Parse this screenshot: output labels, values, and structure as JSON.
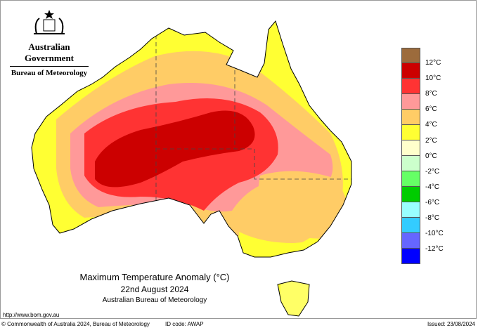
{
  "header": {
    "agency": "Australian Government",
    "bureau": "Bureau of Meteorology",
    "logo": "commonwealth-coat-of-arms"
  },
  "map": {
    "title": "Maximum Temperature Anomaly (°C)",
    "date": "22nd August 2024",
    "source": "Australian Bureau of Meteorology"
  },
  "legend": {
    "colors": [
      "#9c6b3c",
      "#cc0000",
      "#ff3333",
      "#ff9999",
      "#ffcc66",
      "#ffff33",
      "#ffffcc",
      "#ccffcc",
      "#66ff66",
      "#00cc00",
      "#99ffff",
      "#33ccff",
      "#6666ff",
      "#0000ff"
    ],
    "labels": [
      "12°C",
      "10°C",
      "8°C",
      "6°C",
      "4°C",
      "2°C",
      "0°C",
      "-2°C",
      "-4°C",
      "-6°C",
      "-8°C",
      "-10°C",
      "-12°C"
    ]
  },
  "footer": {
    "url": "http://www.bom.gov.au",
    "copyright": "© Commonwealth of Australia 2024, Bureau of Meteorology",
    "id_code": "ID code: AWAP",
    "issued": "Issued: 23/08/2024"
  }
}
